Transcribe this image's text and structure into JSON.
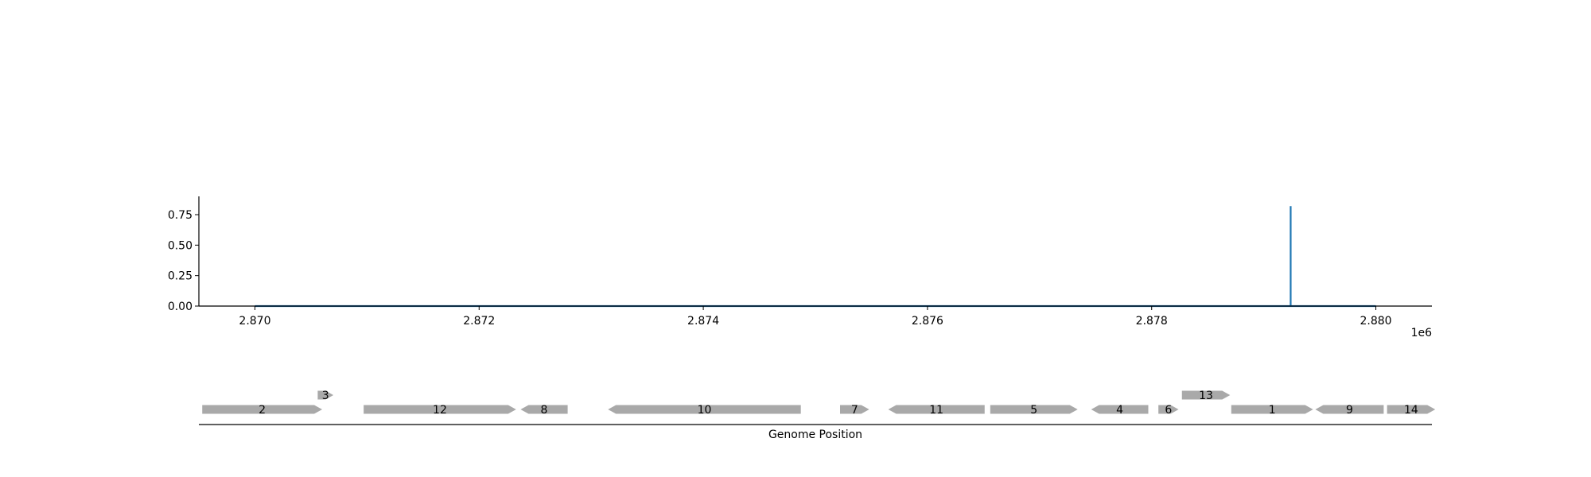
{
  "chart_data": [
    {
      "type": "line",
      "title": "",
      "xlabel": "",
      "ylabel": "",
      "x_offset_label": "1e6",
      "xlim": [
        2.8695,
        2.8805
      ],
      "ylim": [
        0.0,
        0.9
      ],
      "x_ticks": [
        2.87,
        2.872,
        2.874,
        2.876,
        2.878,
        2.88
      ],
      "x_tick_labels": [
        "2.870",
        "2.872",
        "2.874",
        "2.876",
        "2.878",
        "2.880"
      ],
      "y_ticks": [
        0.0,
        0.25,
        0.5,
        0.75
      ],
      "y_tick_labels": [
        "0.00",
        "0.25",
        "0.50",
        "0.75"
      ],
      "grid": false,
      "series_color": "#1f77b4",
      "series": [
        {
          "x": [
            2.87,
            2.87924,
            2.87924,
            2.87924,
            2.88
          ],
          "y": [
            0.0,
            0.0,
            0.82,
            0.0,
            0.0
          ]
        }
      ]
    },
    {
      "type": "gene-track",
      "xlabel": "Genome Position",
      "xlim": [
        2.8695,
        2.8805
      ],
      "feature_color": "#a9a9a9",
      "features": [
        {
          "label": "2",
          "start": 2.86953,
          "end": 2.8706,
          "strand": "+",
          "row": 0
        },
        {
          "label": "3",
          "start": 2.87056,
          "end": 2.8707,
          "strand": "+",
          "row": 1
        },
        {
          "label": "12",
          "start": 2.87097,
          "end": 2.87233,
          "strand": "+",
          "row": 0
        },
        {
          "label": "8",
          "start": 2.87237,
          "end": 2.87279,
          "strand": "-",
          "row": 0
        },
        {
          "label": "10",
          "start": 2.87315,
          "end": 2.87487,
          "strand": "-",
          "row": 0
        },
        {
          "label": "7",
          "start": 2.87522,
          "end": 2.87548,
          "strand": "+",
          "row": 0
        },
        {
          "label": "11",
          "start": 2.87565,
          "end": 2.87651,
          "strand": "-",
          "row": 0
        },
        {
          "label": "5",
          "start": 2.87656,
          "end": 2.87734,
          "strand": "+",
          "row": 0
        },
        {
          "label": "4",
          "start": 2.87746,
          "end": 2.87797,
          "strand": "-",
          "row": 0
        },
        {
          "label": "6",
          "start": 2.87806,
          "end": 2.87824,
          "strand": "+",
          "row": 0
        },
        {
          "label": "13",
          "start": 2.87827,
          "end": 2.8787,
          "strand": "+",
          "row": 1
        },
        {
          "label": "1",
          "start": 2.87871,
          "end": 2.87944,
          "strand": "+",
          "row": 0
        },
        {
          "label": "9",
          "start": 2.87946,
          "end": 2.88007,
          "strand": "-",
          "row": 0
        },
        {
          "label": "14",
          "start": 2.8801,
          "end": 2.88053,
          "strand": "+",
          "row": 0
        }
      ]
    }
  ]
}
